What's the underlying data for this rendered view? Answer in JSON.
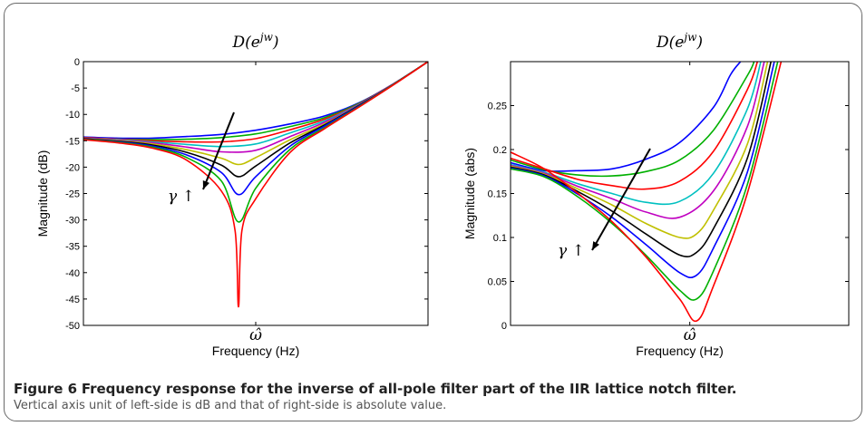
{
  "colors": {
    "series": [
      "#0000ff",
      "#00b000",
      "#ff0000",
      "#00c0c0",
      "#c000c0",
      "#c0c000",
      "#000000",
      "#0000ff",
      "#00b000",
      "#ff0000"
    ],
    "frame_border": "#6a6a6a"
  },
  "caption": {
    "label": "Figure 6",
    "title": "Frequency response for the inverse of all-pole filter part of the IIR lattice notch filter.",
    "description": "Vertical axis unit of left-side is dB and that of right-side is absolute value."
  },
  "chart_data": [
    {
      "type": "line",
      "title": "D(e^jw)",
      "xlabel": "Frequency (Hz)",
      "x_tick_label": "ω̂",
      "ylabel": "Magnitude (dB)",
      "xlim": [
        0,
        1
      ],
      "ylim": [
        -50,
        0
      ],
      "yticks": [
        0,
        -5,
        -10,
        -15,
        -20,
        -25,
        -30,
        -35,
        -40,
        -45,
        -50
      ],
      "annotation": "γ ↑",
      "series": [
        {
          "values": [
            [
              0,
              -14.3
            ],
            [
              0.1,
              -14.5
            ],
            [
              0.2,
              -14.5
            ],
            [
              0.3,
              -14.2
            ],
            [
              0.4,
              -13.8
            ],
            [
              0.5,
              -13.0
            ],
            [
              0.6,
              -11.8
            ],
            [
              0.7,
              -10.3
            ],
            [
              0.8,
              -7.8
            ],
            [
              0.9,
              -4.2
            ],
            [
              1,
              0
            ]
          ]
        },
        {
          "values": [
            [
              0,
              -14.4
            ],
            [
              0.1,
              -14.7
            ],
            [
              0.2,
              -14.8
            ],
            [
              0.3,
              -14.7
            ],
            [
              0.4,
              -14.4
            ],
            [
              0.5,
              -13.7
            ],
            [
              0.6,
              -12.3
            ],
            [
              0.7,
              -10.6
            ],
            [
              0.8,
              -7.9
            ],
            [
              0.9,
              -4.2
            ],
            [
              1,
              0
            ]
          ]
        },
        {
          "values": [
            [
              0,
              -14.4
            ],
            [
              0.1,
              -14.7
            ],
            [
              0.2,
              -15.0
            ],
            [
              0.3,
              -15.2
            ],
            [
              0.4,
              -15.2
            ],
            [
              0.5,
              -14.6
            ],
            [
              0.6,
              -12.9
            ],
            [
              0.7,
              -10.9
            ],
            [
              0.8,
              -8.0
            ],
            [
              0.9,
              -4.2
            ],
            [
              1,
              0
            ]
          ]
        },
        {
          "values": [
            [
              0,
              -14.5
            ],
            [
              0.1,
              -14.8
            ],
            [
              0.2,
              -15.2
            ],
            [
              0.3,
              -15.7
            ],
            [
              0.4,
              -16.1
            ],
            [
              0.5,
              -15.6
            ],
            [
              0.6,
              -13.5
            ],
            [
              0.7,
              -11.2
            ],
            [
              0.8,
              -8.1
            ],
            [
              0.9,
              -4.2
            ],
            [
              1,
              0
            ]
          ]
        },
        {
          "values": [
            [
              0,
              -14.5
            ],
            [
              0.1,
              -14.9
            ],
            [
              0.2,
              -15.4
            ],
            [
              0.3,
              -16.2
            ],
            [
              0.4,
              -17.1
            ],
            [
              0.5,
              -16.8
            ],
            [
              0.6,
              -14.2
            ],
            [
              0.7,
              -11.5
            ],
            [
              0.8,
              -8.2
            ],
            [
              0.9,
              -4.2
            ],
            [
              1,
              0
            ]
          ]
        },
        {
          "values": [
            [
              0,
              -14.6
            ],
            [
              0.1,
              -15.0
            ],
            [
              0.2,
              -15.6
            ],
            [
              0.3,
              -16.7
            ],
            [
              0.4,
              -18.3
            ],
            [
              0.45,
              -19.5
            ],
            [
              0.5,
              -18.2
            ],
            [
              0.6,
              -14.8
            ],
            [
              0.7,
              -11.8
            ],
            [
              0.8,
              -8.3
            ],
            [
              0.9,
              -4.3
            ],
            [
              1,
              0
            ]
          ]
        },
        {
          "values": [
            [
              0,
              -14.6
            ],
            [
              0.1,
              -15.1
            ],
            [
              0.2,
              -15.8
            ],
            [
              0.3,
              -17.2
            ],
            [
              0.4,
              -19.6
            ],
            [
              0.45,
              -21.8
            ],
            [
              0.5,
              -19.8
            ],
            [
              0.6,
              -15.4
            ],
            [
              0.7,
              -12.0
            ],
            [
              0.8,
              -8.3
            ],
            [
              0.9,
              -4.3
            ],
            [
              1,
              0
            ]
          ]
        },
        {
          "values": [
            [
              0,
              -14.7
            ],
            [
              0.1,
              -15.2
            ],
            [
              0.2,
              -16.0
            ],
            [
              0.3,
              -17.7
            ],
            [
              0.4,
              -21.0
            ],
            [
              0.45,
              -25.2
            ],
            [
              0.5,
              -21.8
            ],
            [
              0.6,
              -16.0
            ],
            [
              0.7,
              -12.2
            ],
            [
              0.8,
              -8.4
            ],
            [
              0.9,
              -4.3
            ],
            [
              1,
              0
            ]
          ]
        },
        {
          "values": [
            [
              0,
              -14.7
            ],
            [
              0.1,
              -15.3
            ],
            [
              0.2,
              -16.2
            ],
            [
              0.3,
              -18.2
            ],
            [
              0.4,
              -22.6
            ],
            [
              0.45,
              -30.4
            ],
            [
              0.5,
              -24.0
            ],
            [
              0.6,
              -16.6
            ],
            [
              0.7,
              -12.5
            ],
            [
              0.8,
              -8.5
            ],
            [
              0.9,
              -4.3
            ],
            [
              1,
              0
            ]
          ]
        },
        {
          "values": [
            [
              0,
              -14.8
            ],
            [
              0.1,
              -15.4
            ],
            [
              0.2,
              -16.4
            ],
            [
              0.3,
              -18.7
            ],
            [
              0.4,
              -24.5
            ],
            [
              0.44,
              -32.0
            ],
            [
              0.45,
              -46.5
            ],
            [
              0.46,
              -32.0
            ],
            [
              0.5,
              -26.0
            ],
            [
              0.6,
              -17.2
            ],
            [
              0.7,
              -12.7
            ],
            [
              0.8,
              -8.6
            ],
            [
              0.9,
              -4.4
            ],
            [
              1,
              0
            ]
          ]
        }
      ]
    },
    {
      "type": "line",
      "title": "D(e^jw)",
      "xlabel": "Frequency (Hz)",
      "x_tick_label": "ω̂",
      "ylabel": "Magnitude (abs)",
      "xlim": [
        0,
        1
      ],
      "ylim": [
        0,
        0.3
      ],
      "yticks": [
        0,
        0.05,
        0.1,
        0.15,
        0.2,
        0.25
      ],
      "annotation": "γ ↑",
      "series": [
        {
          "values": [
            [
              0,
              0.185
            ],
            [
              0.1,
              0.176
            ],
            [
              0.2,
              0.176
            ],
            [
              0.3,
              0.178
            ],
            [
              0.4,
              0.189
            ],
            [
              0.5,
              0.208
            ],
            [
              0.6,
              0.248
            ],
            [
              0.65,
              0.285
            ],
            [
              0.68,
              0.3
            ]
          ]
        },
        {
          "values": [
            [
              0,
              0.188
            ],
            [
              0.1,
              0.177
            ],
            [
              0.2,
              0.171
            ],
            [
              0.3,
              0.17
            ],
            [
              0.4,
              0.175
            ],
            [
              0.5,
              0.188
            ],
            [
              0.6,
              0.222
            ],
            [
              0.7,
              0.284
            ],
            [
              0.72,
              0.3
            ]
          ]
        },
        {
          "values": [
            [
              0,
              0.19
            ],
            [
              0.1,
              0.178
            ],
            [
              0.2,
              0.166
            ],
            [
              0.3,
              0.159
            ],
            [
              0.4,
              0.155
            ],
            [
              0.5,
              0.164
            ],
            [
              0.6,
              0.198
            ],
            [
              0.7,
              0.268
            ],
            [
              0.73,
              0.3
            ]
          ]
        },
        {
          "values": [
            [
              0,
              0.183
            ],
            [
              0.1,
              0.174
            ],
            [
              0.2,
              0.161
            ],
            [
              0.3,
              0.15
            ],
            [
              0.4,
              0.14
            ],
            [
              0.5,
              0.141
            ],
            [
              0.6,
              0.173
            ],
            [
              0.7,
              0.246
            ],
            [
              0.74,
              0.3
            ]
          ]
        },
        {
          "values": [
            [
              0,
              0.182
            ],
            [
              0.1,
              0.173
            ],
            [
              0.2,
              0.158
            ],
            [
              0.3,
              0.144
            ],
            [
              0.4,
              0.129
            ],
            [
              0.5,
              0.123
            ],
            [
              0.6,
              0.153
            ],
            [
              0.7,
              0.226
            ],
            [
              0.75,
              0.3
            ]
          ]
        },
        {
          "values": [
            [
              0,
              0.181
            ],
            [
              0.1,
              0.172
            ],
            [
              0.2,
              0.155
            ],
            [
              0.3,
              0.137
            ],
            [
              0.4,
              0.116
            ],
            [
              0.5,
              0.1
            ],
            [
              0.55,
              0.104
            ],
            [
              0.6,
              0.131
            ],
            [
              0.7,
              0.206
            ],
            [
              0.76,
              0.3
            ]
          ]
        },
        {
          "values": [
            [
              0,
              0.18
            ],
            [
              0.1,
              0.171
            ],
            [
              0.2,
              0.152
            ],
            [
              0.3,
              0.13
            ],
            [
              0.4,
              0.104
            ],
            [
              0.5,
              0.08
            ],
            [
              0.55,
              0.083
            ],
            [
              0.6,
              0.11
            ],
            [
              0.7,
              0.19
            ],
            [
              0.77,
              0.3
            ]
          ]
        },
        {
          "values": [
            [
              0,
              0.179
            ],
            [
              0.1,
              0.17
            ],
            [
              0.2,
              0.149
            ],
            [
              0.3,
              0.123
            ],
            [
              0.4,
              0.092
            ],
            [
              0.5,
              0.06
            ],
            [
              0.55,
              0.057
            ],
            [
              0.6,
              0.088
            ],
            [
              0.7,
              0.174
            ],
            [
              0.78,
              0.3
            ]
          ]
        },
        {
          "values": [
            [
              0,
              0.178
            ],
            [
              0.1,
              0.169
            ],
            [
              0.2,
              0.146
            ],
            [
              0.3,
              0.116
            ],
            [
              0.4,
              0.08
            ],
            [
              0.5,
              0.04
            ],
            [
              0.55,
              0.03
            ],
            [
              0.6,
              0.062
            ],
            [
              0.7,
              0.16
            ],
            [
              0.79,
              0.3
            ]
          ]
        },
        {
          "values": [
            [
              0,
              0.197
            ],
            [
              0.1,
              0.178
            ],
            [
              0.2,
              0.15
            ],
            [
              0.3,
              0.118
            ],
            [
              0.4,
              0.078
            ],
            [
              0.5,
              0.03
            ],
            [
              0.55,
              0.005
            ],
            [
              0.6,
              0.045
            ],
            [
              0.7,
              0.15
            ],
            [
              0.8,
              0.3
            ]
          ]
        }
      ]
    }
  ]
}
